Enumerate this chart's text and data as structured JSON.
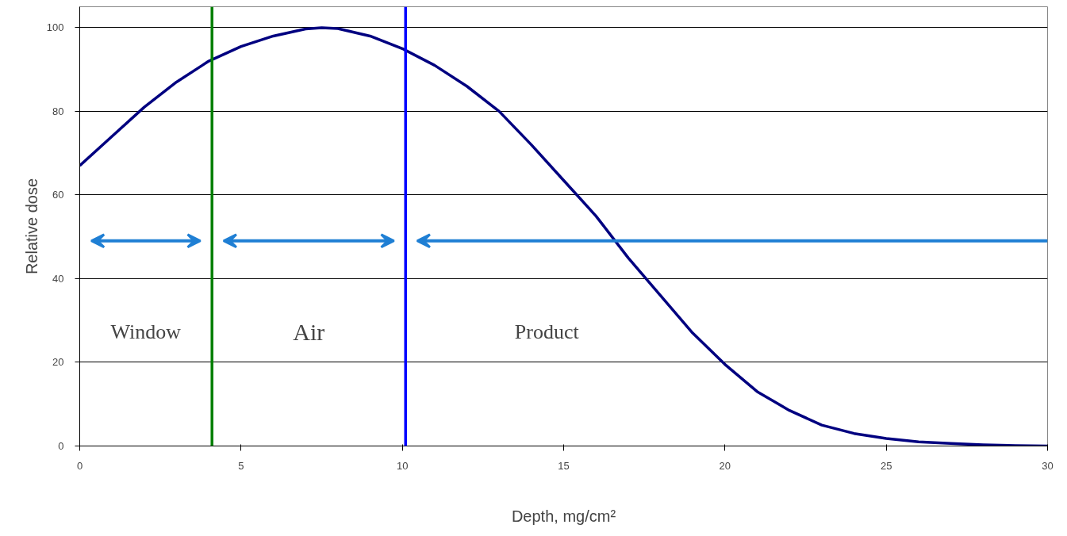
{
  "chart_data": {
    "type": "line",
    "xlabel": "Depth, mg/cm²",
    "ylabel": "Relative dose",
    "x": [
      0,
      1,
      2,
      3,
      4,
      5,
      6,
      7,
      7.5,
      8,
      9,
      10,
      11,
      12,
      13,
      14,
      15,
      16,
      17,
      18,
      19,
      20,
      21,
      22,
      23,
      24,
      25,
      26,
      27,
      28,
      29,
      30
    ],
    "series": [
      {
        "color": "#000080",
        "values": [
          67,
          74,
          81,
          87,
          92,
          95.5,
          98,
          99.7,
          100,
          99.8,
          98,
          95,
          91,
          86,
          80,
          72,
          63.5,
          55,
          45,
          36,
          27,
          19.5,
          13,
          8.5,
          5,
          3,
          1.8,
          1,
          0.6,
          0.3,
          0.1,
          0
        ]
      }
    ],
    "xlim": [
      0,
      30
    ],
    "xticks": [
      0,
      5,
      10,
      15,
      20,
      25,
      30
    ],
    "ylim": [
      0,
      105
    ],
    "yticks": [
      0,
      20,
      40,
      60,
      80,
      100
    ],
    "grid": "y",
    "marker": "none",
    "line_style": "solid",
    "ref_lines": [
      {
        "axis": "x",
        "value": 4.1,
        "label": null,
        "color": "#008000"
      },
      {
        "axis": "x",
        "value": 10.1,
        "label": null,
        "color": "#0000ff"
      }
    ],
    "annotations": [
      "Window",
      "Air",
      "Product"
    ]
  }
}
